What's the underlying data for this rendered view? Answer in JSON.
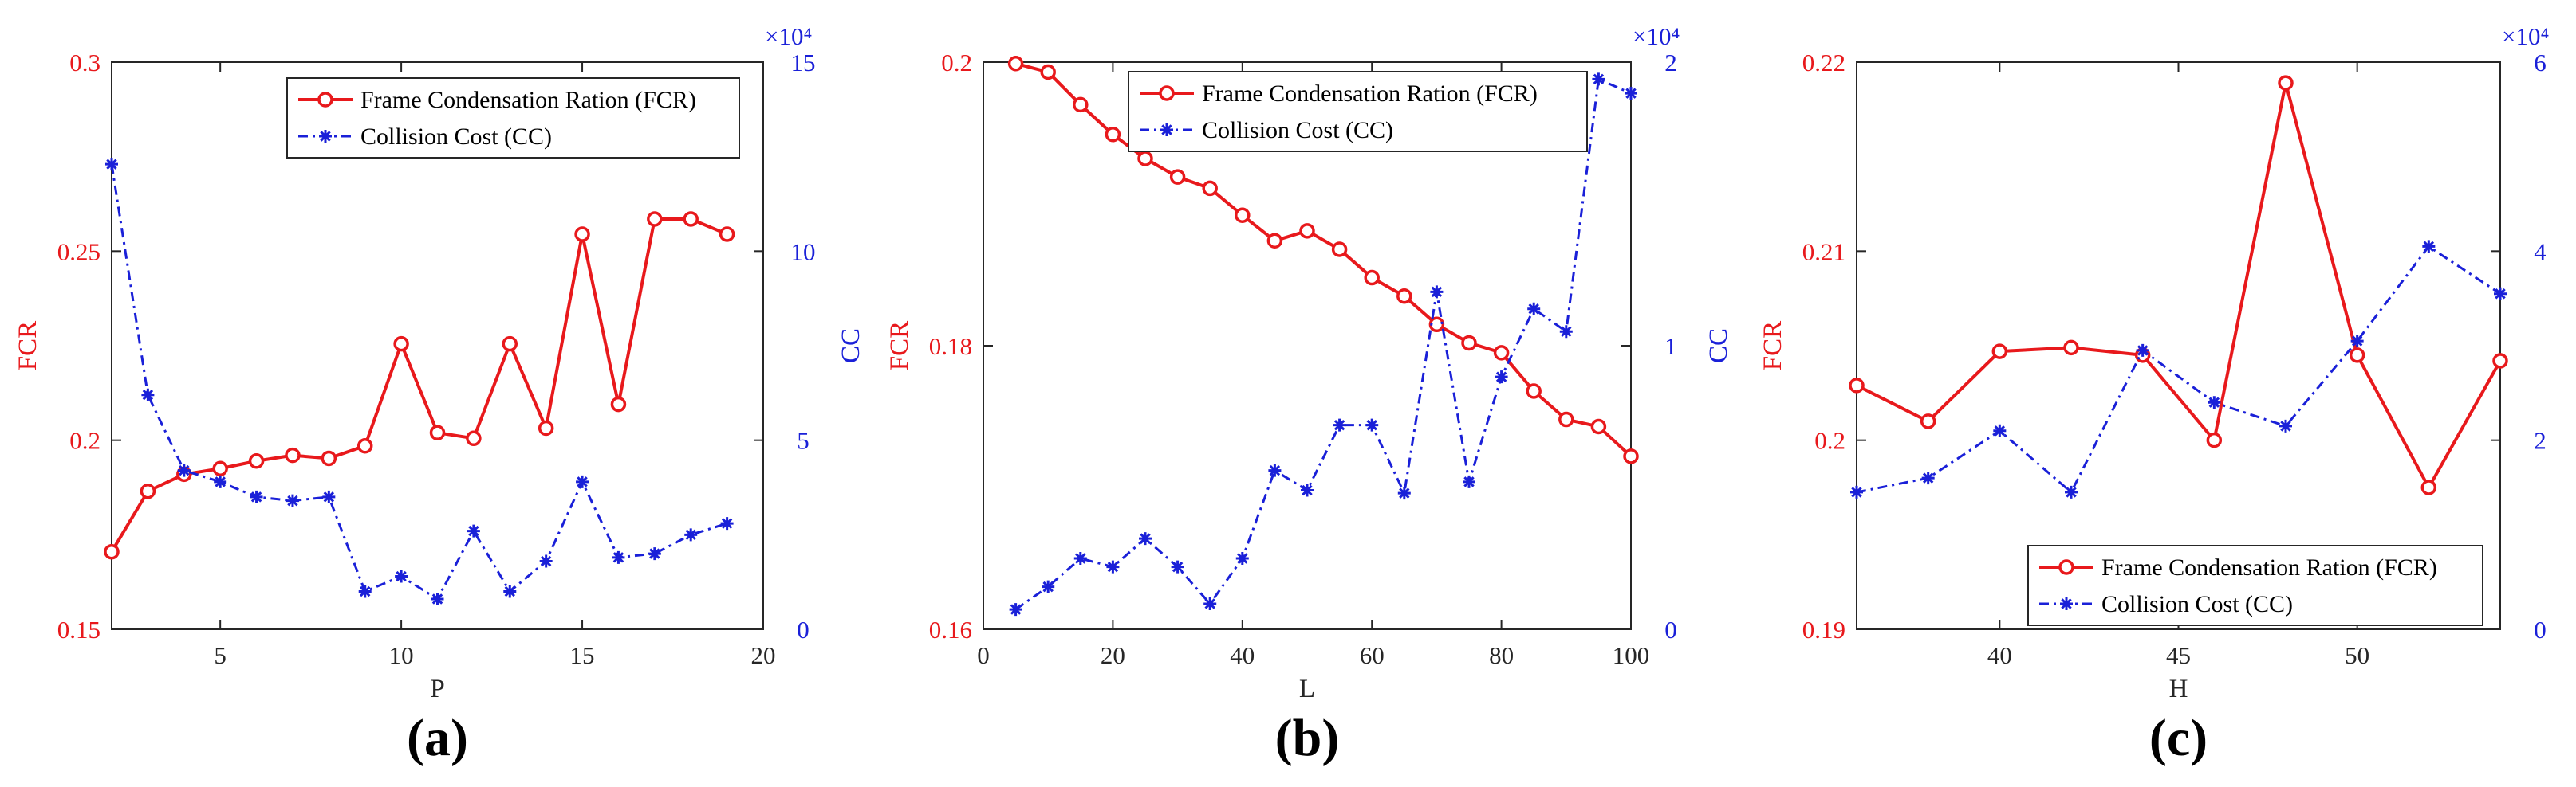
{
  "chart_data": [
    {
      "type": "line",
      "panel": "(a)",
      "xlabel": "P",
      "ylabel_left": "FCR",
      "ylabel_right": "CC",
      "xlim": [
        2,
        20
      ],
      "ylim_left": [
        0.15,
        0.3
      ],
      "ylim_right": [
        0,
        15
      ],
      "x_ticks": [
        5,
        10,
        15,
        20
      ],
      "y_ticks_left": [
        0.15,
        0.2,
        0.25,
        0.3
      ],
      "y_ticks_right": [
        0,
        5,
        10,
        15
      ],
      "right_multiplier": "×10⁴",
      "legend_position": "top-right",
      "series": [
        {
          "name": "Frame Condensation Ration (FCR)",
          "axis": "left",
          "color": "#e8191c",
          "style": "solid",
          "marker": "circle",
          "x": [
            2,
            3,
            4,
            5,
            6,
            7,
            8,
            9,
            10,
            11,
            12,
            13,
            14,
            15,
            16,
            17,
            18,
            19
          ],
          "values": [
            0.1705,
            0.1865,
            0.191,
            0.1925,
            0.1945,
            0.196,
            0.1952,
            0.1985,
            0.2255,
            0.202,
            0.2005,
            0.2255,
            0.2032,
            0.2545,
            0.2095,
            0.2585,
            0.2585,
            0.2545
          ]
        },
        {
          "name": "Collision Cost (CC)",
          "axis": "right",
          "color": "#1a20d8",
          "style": "dashed",
          "marker": "star",
          "x": [
            2,
            3,
            4,
            5,
            6,
            7,
            8,
            9,
            10,
            11,
            12,
            13,
            14,
            15,
            16,
            17,
            18,
            19
          ],
          "values": [
            12.3,
            6.2,
            4.2,
            3.9,
            3.5,
            3.4,
            3.5,
            1.0,
            1.4,
            0.8,
            2.6,
            1.0,
            1.8,
            3.9,
            1.9,
            2.0,
            2.5,
            2.8
          ]
        }
      ]
    },
    {
      "type": "line",
      "panel": "(b)",
      "xlabel": "L",
      "ylabel_left": "FCR",
      "ylabel_right": "CC",
      "xlim": [
        0,
        100
      ],
      "ylim_left": [
        0.16,
        0.2
      ],
      "ylim_right": [
        0,
        2
      ],
      "x_ticks": [
        0,
        20,
        40,
        60,
        80,
        100
      ],
      "y_ticks_left": [
        0.16,
        0.18,
        0.2
      ],
      "y_ticks_right": [
        0,
        1,
        2
      ],
      "right_multiplier": "×10⁴",
      "legend_position": "top-right",
      "series": [
        {
          "name": "Frame Condensation Ration (FCR)",
          "axis": "left",
          "color": "#e8191c",
          "style": "solid",
          "marker": "circle",
          "x": [
            5,
            10,
            15,
            20,
            25,
            30,
            35,
            40,
            45,
            50,
            55,
            60,
            65,
            70,
            75,
            80,
            85,
            90,
            95,
            100
          ],
          "values": [
            0.1999,
            0.1993,
            0.197,
            0.1949,
            0.1932,
            0.1919,
            0.1911,
            0.1892,
            0.1874,
            0.1881,
            0.1868,
            0.1848,
            0.1835,
            0.1815,
            0.1802,
            0.1795,
            0.1768,
            0.1748,
            0.1743,
            0.1722
          ]
        },
        {
          "name": "Collision Cost (CC)",
          "axis": "right",
          "color": "#1a20d8",
          "style": "dashed",
          "marker": "star",
          "x": [
            5,
            10,
            15,
            20,
            25,
            30,
            35,
            40,
            45,
            50,
            55,
            60,
            65,
            70,
            75,
            80,
            85,
            90,
            95,
            100
          ],
          "values": [
            0.07,
            0.15,
            0.25,
            0.22,
            0.32,
            0.22,
            0.09,
            0.25,
            0.56,
            0.49,
            0.72,
            0.72,
            0.48,
            1.19,
            0.52,
            0.89,
            1.13,
            1.05,
            1.94,
            1.89
          ]
        }
      ]
    },
    {
      "type": "line",
      "panel": "(c)",
      "xlabel": "H",
      "ylabel_left": "FCR",
      "ylabel_right": "CC",
      "xlim": [
        36,
        54
      ],
      "ylim_left": [
        0.19,
        0.22
      ],
      "ylim_right": [
        0,
        6
      ],
      "x_ticks": [
        40,
        45,
        50
      ],
      "y_ticks_left": [
        0.19,
        0.2,
        0.21,
        0.22
      ],
      "y_ticks_right": [
        0,
        2,
        4,
        6
      ],
      "right_multiplier": "×10⁴",
      "legend_position": "bottom-right",
      "series": [
        {
          "name": "Frame Condensation Ration (FCR)",
          "axis": "left",
          "color": "#e8191c",
          "style": "solid",
          "marker": "circle",
          "x": [
            36,
            38,
            40,
            42,
            44,
            46,
            48,
            50,
            52,
            54
          ],
          "values": [
            0.2029,
            0.201,
            0.2047,
            0.2049,
            0.2045,
            0.2,
            0.2189,
            0.2045,
            0.1975,
            0.2042
          ]
        },
        {
          "name": "Collision Cost (CC)",
          "axis": "right",
          "color": "#1a20d8",
          "style": "dashed",
          "marker": "star",
          "x": [
            36,
            38,
            40,
            42,
            44,
            46,
            48,
            50,
            52,
            54
          ],
          "values": [
            1.45,
            1.6,
            2.1,
            1.45,
            2.95,
            2.4,
            2.15,
            3.05,
            4.05,
            3.55
          ]
        }
      ]
    }
  ]
}
